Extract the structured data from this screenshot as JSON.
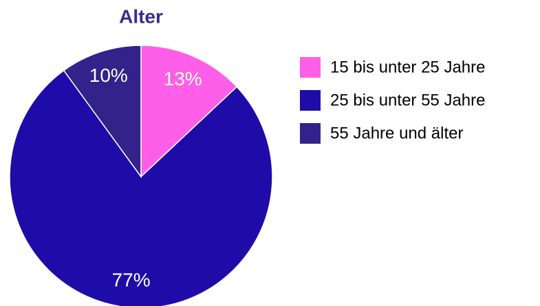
{
  "chart_data": {
    "type": "pie",
    "title": "Alter",
    "categories": [
      "15 bis unter 25 Jahre",
      "25 bis unter 55 Jahre",
      "55 Jahre und älter"
    ],
    "values": [
      13,
      77,
      10
    ],
    "value_labels": [
      "13%",
      "77%",
      "10%"
    ],
    "colors": [
      "#ff5ee8",
      "#1f0ca8",
      "#33228a"
    ],
    "legend": "right"
  }
}
